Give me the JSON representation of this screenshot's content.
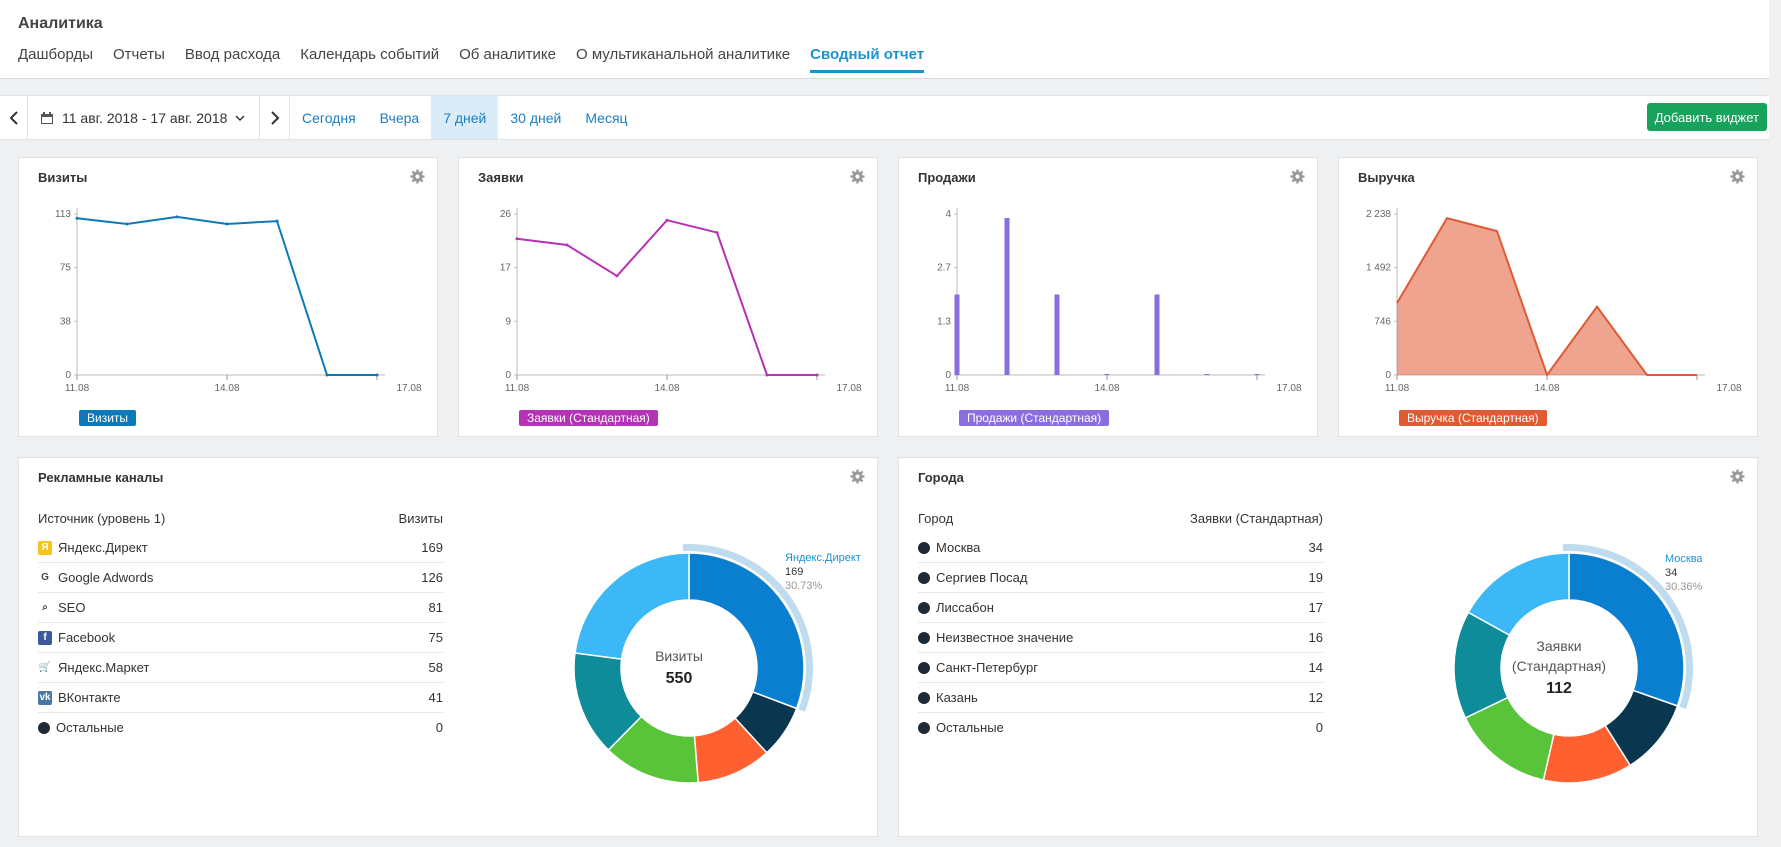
{
  "app": {
    "title": "Аналитика",
    "tabs": [
      "Дашборды",
      "Отчеты",
      "Ввод расхода",
      "Календарь событий",
      "Об аналитике",
      "О мультиканальной аналитике",
      "Сводный отчет"
    ],
    "active_tab": 6
  },
  "toolbar": {
    "date_range": "11 авг. 2018 - 17 авг. 2018",
    "presets": [
      "Сегодня",
      "Вчера",
      "7 дней",
      "30 дней",
      "Месяц"
    ],
    "active_preset": 2,
    "add_widget": "Добавить виджет"
  },
  "colors": {
    "visits": "#0c79b8",
    "leads": "#b531b5",
    "sales": "#8a6ee0",
    "revenue": "#e05a33",
    "accent": "#1b93d1",
    "green": "#17a35b"
  },
  "chart_data": [
    {
      "type": "line",
      "title": "Визиты",
      "x_ticks": [
        "11.08",
        "14.08",
        "17.08"
      ],
      "y_ticks": [
        "0",
        "38",
        "75",
        "113"
      ],
      "ylim": [
        0,
        113
      ],
      "x": [
        "11.08",
        "12.08",
        "13.08",
        "14.08",
        "15.08",
        "16.08",
        "17.08"
      ],
      "series": [
        {
          "name": "Визиты",
          "values": [
            110,
            106,
            111,
            106,
            108,
            0,
            0
          ]
        }
      ]
    },
    {
      "type": "line",
      "title": "Заявки",
      "x_ticks": [
        "11.08",
        "14.08",
        "17.08"
      ],
      "y_ticks": [
        "0",
        "9",
        "17",
        "26"
      ],
      "ylim": [
        0,
        26
      ],
      "x": [
        "11.08",
        "12.08",
        "13.08",
        "14.08",
        "15.08",
        "16.08",
        "17.08"
      ],
      "series": [
        {
          "name": "Заявки (Стандартная)",
          "values": [
            22,
            21,
            16,
            25,
            23,
            0,
            0
          ]
        }
      ]
    },
    {
      "type": "bar",
      "title": "Продажи",
      "x_ticks": [
        "11.08",
        "14.08",
        "17.08"
      ],
      "y_ticks": [
        "0",
        "1.3",
        "2.7",
        "4"
      ],
      "ylim": [
        0,
        4
      ],
      "x": [
        "11.08",
        "12.08",
        "13.08",
        "14.08",
        "15.08",
        "16.08",
        "17.08"
      ],
      "series": [
        {
          "name": "Продажи (Стандартная)",
          "values": [
            2,
            3.9,
            2,
            0,
            2,
            0,
            0
          ]
        }
      ]
    },
    {
      "type": "area",
      "title": "Выручка",
      "x_ticks": [
        "11.08",
        "14.08",
        "17.08"
      ],
      "y_ticks": [
        "0",
        "746",
        "1 492",
        "2 238"
      ],
      "ylim": [
        0,
        2238
      ],
      "x": [
        "11.08",
        "12.08",
        "13.08",
        "14.08",
        "15.08",
        "16.08",
        "17.08"
      ],
      "series": [
        {
          "name": "Выручка (Стандартная)",
          "values": [
            1000,
            2180,
            2000,
            0,
            950,
            0,
            0
          ]
        }
      ]
    }
  ],
  "channels": {
    "title": "Рекламные каналы",
    "col1": "Источник (уровень 1)",
    "col2": "Визиты",
    "rows": [
      {
        "label": "Яндекс.Директ",
        "value": "169",
        "icon": "yandex-direct-icon",
        "color": "#f5c51c",
        "glyph": "Я"
      },
      {
        "label": "Google Adwords",
        "value": "126",
        "icon": "google-icon",
        "color": "#ffffff",
        "glyph": "G"
      },
      {
        "label": "SEO",
        "value": "81",
        "icon": "magnifier-icon",
        "color": "#ffffff",
        "glyph": "⌕"
      },
      {
        "label": "Facebook",
        "value": "75",
        "icon": "facebook-icon",
        "color": "#3b5998",
        "glyph": "f"
      },
      {
        "label": "Яндекс.Маркет",
        "value": "58",
        "icon": "cart-icon",
        "color": "#ffffff",
        "glyph": "🛒"
      },
      {
        "label": "ВКонтакте",
        "value": "41",
        "icon": "vk-icon",
        "color": "#4a76a8",
        "glyph": "vk"
      },
      {
        "label": "Остальные",
        "value": "0",
        "icon": "dot-icon",
        "color": "#1e2b36",
        "glyph": ""
      }
    ],
    "donut": {
      "center_label": "Визиты",
      "total": "550",
      "callout_name": "Яндекс.Директ",
      "callout_value": "169",
      "callout_pct": "30.73%",
      "slices": [
        {
          "value": 169,
          "color": "#0a7fd0"
        },
        {
          "value": 41,
          "color": "#0b3650"
        },
        {
          "value": 58,
          "color": "#ff6030"
        },
        {
          "value": 75,
          "color": "#59c43a"
        },
        {
          "value": 81,
          "color": "#0e8c99"
        },
        {
          "value": 126,
          "color": "#3bb8f5"
        }
      ]
    }
  },
  "cities": {
    "title": "Города",
    "col1": "Город",
    "col2": "Заявки (Стандартная)",
    "rows": [
      {
        "label": "Москва",
        "value": "34"
      },
      {
        "label": "Сергиев Посад",
        "value": "19"
      },
      {
        "label": "Лиссабон",
        "value": "17"
      },
      {
        "label": "Неизвестное значение",
        "value": "16"
      },
      {
        "label": "Санкт-Петербург",
        "value": "14"
      },
      {
        "label": "Казань",
        "value": "12"
      },
      {
        "label": "Остальные",
        "value": "0"
      }
    ],
    "donut": {
      "center_label_1": "Заявки",
      "center_label_2": "(Стандартная)",
      "total": "112",
      "callout_name": "Москва",
      "callout_value": "34",
      "callout_pct": "30.36%",
      "slices": [
        {
          "value": 34,
          "color": "#0a7fd0"
        },
        {
          "value": 12,
          "color": "#0b3650"
        },
        {
          "value": 14,
          "color": "#ff6030"
        },
        {
          "value": 16,
          "color": "#59c43a"
        },
        {
          "value": 17,
          "color": "#0e8c99"
        },
        {
          "value": 19,
          "color": "#3bb8f5"
        }
      ]
    }
  }
}
